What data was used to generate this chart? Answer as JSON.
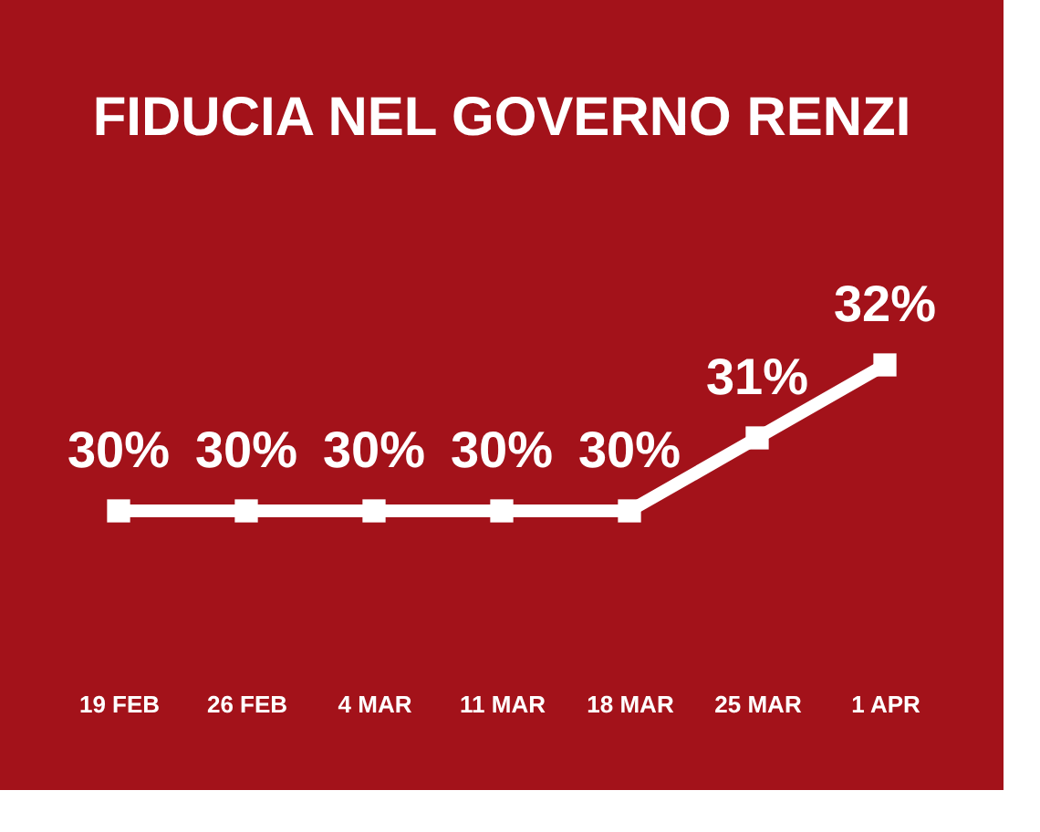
{
  "chart_data": {
    "type": "line",
    "title": "FIDUCIA NEL GOVERNO RENZI",
    "categories": [
      "19 FEB",
      "26 FEB",
      "4 MAR",
      "11 MAR",
      "18 MAR",
      "25 MAR",
      "1 APR"
    ],
    "series": [
      {
        "color": "#ffffff",
        "values": [
          30,
          30,
          30,
          30,
          30,
          31,
          32
        ],
        "value_labels": [
          "30%",
          "30%",
          "30%",
          "30%",
          "30%",
          "31%",
          "32%"
        ]
      }
    ],
    "tick_labels": "x",
    "grid": false,
    "marker": "square",
    "line_style": "solid"
  }
}
